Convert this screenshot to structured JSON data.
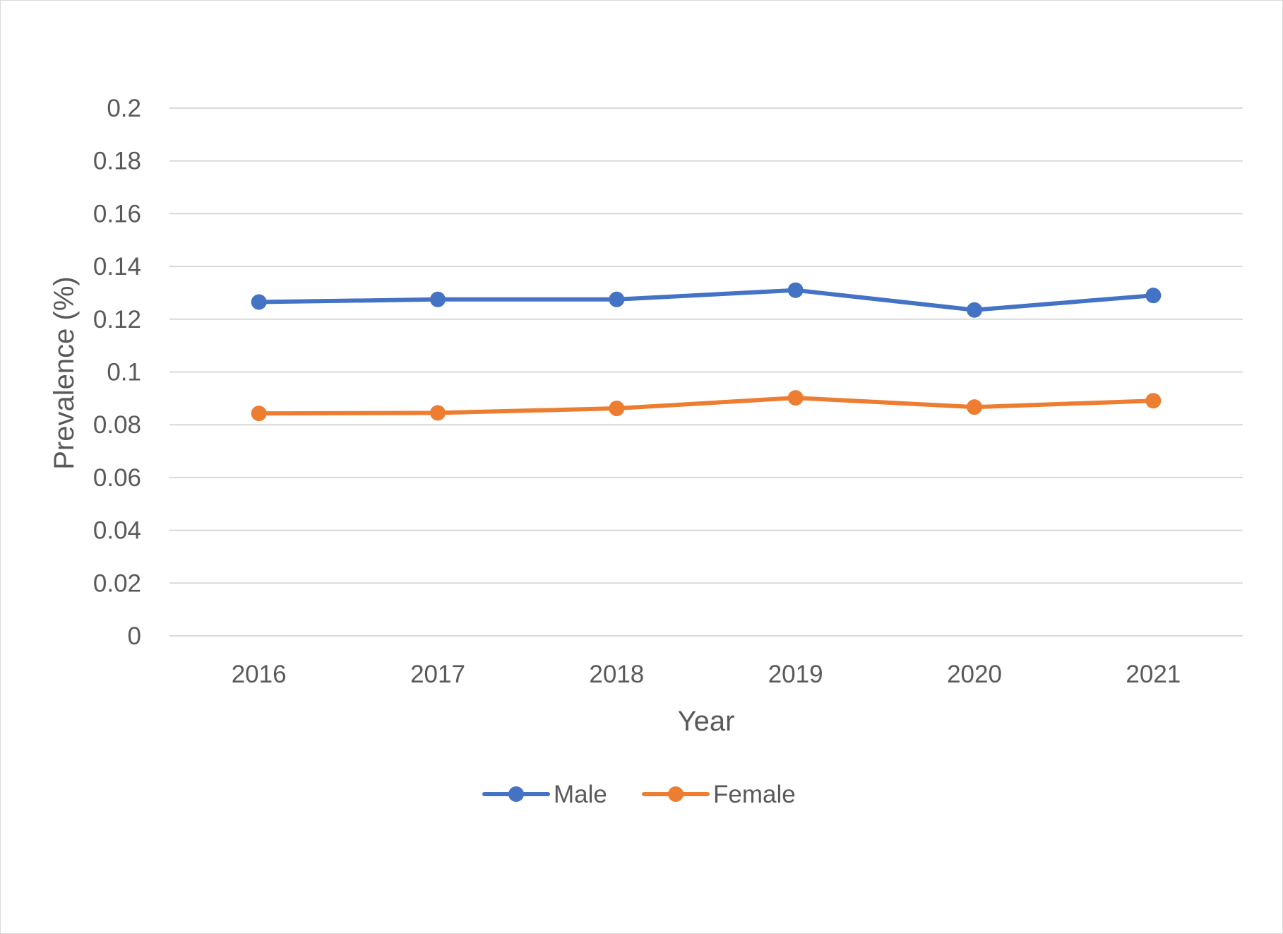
{
  "chart_data": {
    "type": "line",
    "title": "",
    "xlabel": "Year",
    "ylabel": "Prevalence (%)",
    "categories": [
      "2016",
      "2017",
      "2018",
      "2019",
      "2020",
      "2021"
    ],
    "ylim": [
      0,
      0.2
    ],
    "yticks": [
      "0",
      "0.02",
      "0.04",
      "0.06",
      "0.08",
      "0.1",
      "0.12",
      "0.14",
      "0.16",
      "0.18",
      "0.2"
    ],
    "grid": true,
    "legend_position": "bottom",
    "series": [
      {
        "name": "Male",
        "color": "#4472C4",
        "values": [
          0.1265,
          0.1275,
          0.1275,
          0.131,
          0.1235,
          0.129
        ]
      },
      {
        "name": "Female",
        "color": "#ED7D31",
        "values": [
          0.0843,
          0.0845,
          0.0862,
          0.0902,
          0.0867,
          0.0891
        ]
      }
    ]
  }
}
